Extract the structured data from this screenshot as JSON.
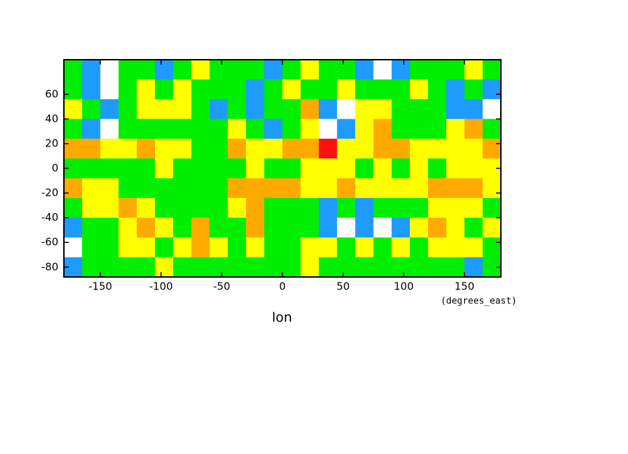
{
  "chart_data": {
    "type": "contour",
    "x_label": "lon",
    "x_units": "(degrees_east)",
    "xlim": [
      -180,
      180
    ],
    "ylim": [
      -88,
      88
    ],
    "xticks": [
      -150,
      -100,
      -50,
      0,
      50,
      100,
      150
    ],
    "yticks": [
      -80,
      -60,
      -40,
      -20,
      0,
      20,
      40,
      60
    ],
    "level_colors": [
      "#ffffff",
      "#1e9bff",
      "#00ee00",
      "#ffff00",
      "#ffaa00",
      "#ff1010"
    ],
    "z": [
      [
        2,
        1,
        0,
        2,
        2,
        1,
        2,
        3,
        2,
        2,
        2,
        1,
        2,
        3,
        2,
        2,
        1,
        0,
        1,
        2,
        2,
        2,
        3,
        2
      ],
      [
        2,
        1,
        0,
        2,
        3,
        2,
        3,
        2,
        2,
        2,
        1,
        2,
        3,
        2,
        2,
        3,
        2,
        2,
        2,
        3,
        2,
        1,
        2,
        1
      ],
      [
        3,
        2,
        1,
        2,
        3,
        3,
        3,
        2,
        1,
        2,
        1,
        2,
        2,
        4,
        1,
        0,
        3,
        3,
        2,
        2,
        2,
        1,
        1,
        0
      ],
      [
        2,
        1,
        0,
        2,
        2,
        2,
        2,
        2,
        2,
        3,
        2,
        1,
        2,
        3,
        0,
        1,
        3,
        4,
        2,
        2,
        2,
        3,
        4,
        2
      ],
      [
        4,
        4,
        3,
        3,
        4,
        3,
        3,
        2,
        2,
        4,
        3,
        3,
        4,
        4,
        5,
        3,
        3,
        4,
        4,
        3,
        3,
        3,
        3,
        4
      ],
      [
        2,
        2,
        2,
        2,
        2,
        3,
        2,
        2,
        2,
        2,
        3,
        2,
        2,
        3,
        3,
        3,
        2,
        3,
        2,
        3,
        2,
        3,
        3,
        3
      ],
      [
        4,
        3,
        3,
        2,
        2,
        2,
        2,
        2,
        2,
        4,
        4,
        4,
        4,
        3,
        3,
        4,
        3,
        3,
        3,
        3,
        4,
        4,
        4,
        3
      ],
      [
        2,
        3,
        3,
        4,
        3,
        2,
        2,
        2,
        2,
        3,
        4,
        2,
        2,
        2,
        1,
        2,
        1,
        2,
        2,
        2,
        3,
        3,
        3,
        2
      ],
      [
        1,
        2,
        2,
        3,
        4,
        3,
        2,
        4,
        2,
        2,
        4,
        2,
        2,
        2,
        1,
        0,
        1,
        0,
        1,
        3,
        4,
        3,
        2,
        3
      ],
      [
        0,
        2,
        2,
        3,
        3,
        2,
        3,
        4,
        3,
        2,
        3,
        2,
        2,
        3,
        3,
        2,
        3,
        2,
        3,
        2,
        3,
        3,
        3,
        2
      ],
      [
        1,
        2,
        2,
        2,
        2,
        3,
        2,
        2,
        2,
        2,
        2,
        2,
        2,
        3,
        2,
        2,
        2,
        2,
        2,
        2,
        2,
        2,
        1,
        2
      ]
    ]
  }
}
